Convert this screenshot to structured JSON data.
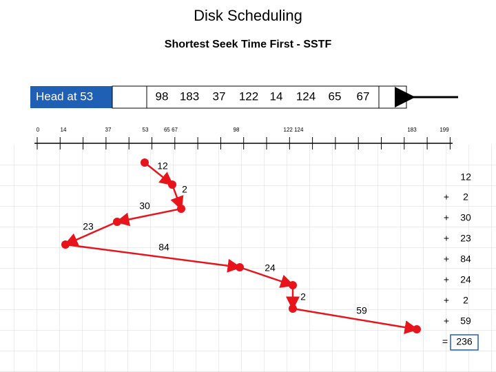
{
  "title": "Disk Scheduling",
  "subtitle": "Shortest Seek Time First - SSTF",
  "queue": {
    "head": "Head at 53",
    "requests": [
      98,
      183,
      37,
      122,
      14,
      124,
      65,
      67
    ]
  },
  "axis_labels": [
    "0",
    "14",
    "37",
    "53",
    "65 67",
    "98",
    "122 124",
    "183",
    "199"
  ],
  "moves": [
    12,
    2,
    30,
    23,
    84,
    24,
    2,
    59
  ],
  "sum": {
    "first": 12,
    "terms": [
      {
        "op": "+",
        "value": 2
      },
      {
        "op": "+",
        "value": 30
      },
      {
        "op": "+",
        "value": 23
      },
      {
        "op": "+",
        "value": 84
      },
      {
        "op": "+",
        "value": 24
      },
      {
        "op": "+",
        "value": 2
      },
      {
        "op": "+",
        "value": 59
      }
    ],
    "equals": "=",
    "total": 236
  }
}
